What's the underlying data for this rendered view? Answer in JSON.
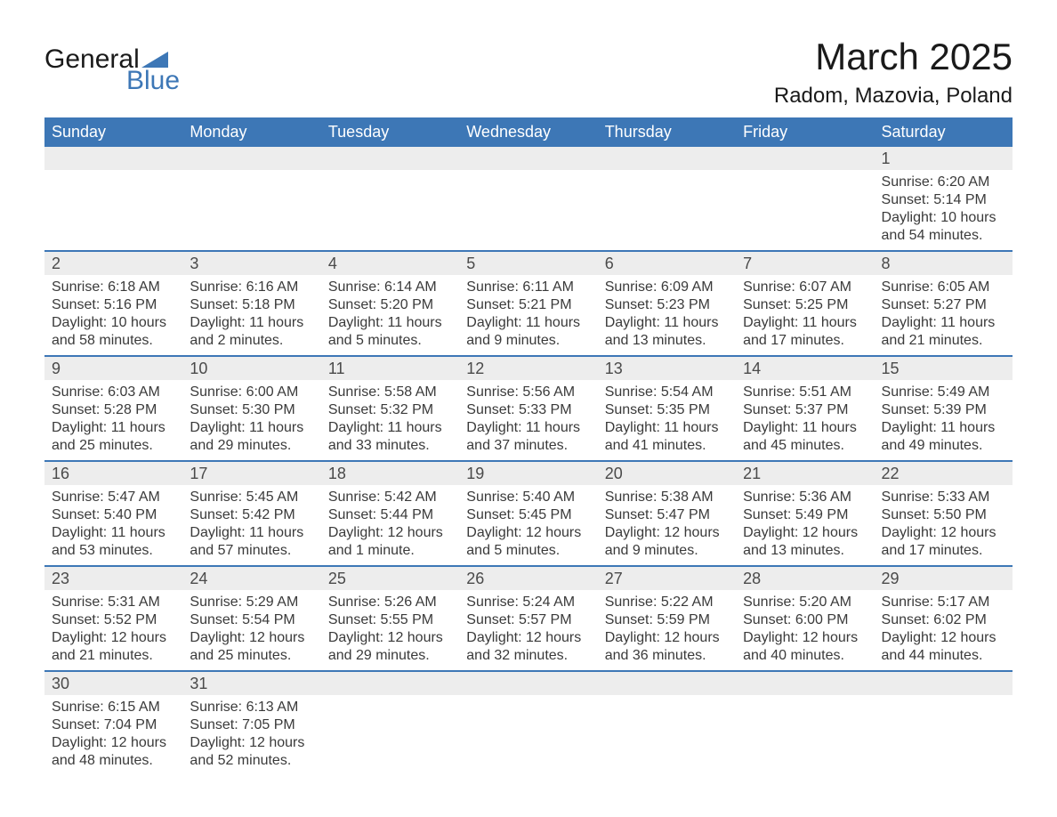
{
  "brand": {
    "word1": "General",
    "word2": "Blue"
  },
  "title": "March 2025",
  "location": "Radom, Mazovia, Poland",
  "colors": {
    "header_bg": "#3d77b6",
    "header_text": "#ffffff",
    "daynum_bg": "#ededed",
    "row_border": "#3d77b6",
    "body_text": "#3a3a3a",
    "logo_blue": "#3d77b6"
  },
  "weekdays": [
    "Sunday",
    "Monday",
    "Tuesday",
    "Wednesday",
    "Thursday",
    "Friday",
    "Saturday"
  ],
  "weeks": [
    [
      null,
      null,
      null,
      null,
      null,
      null,
      {
        "n": "1",
        "sr": "Sunrise: 6:20 AM",
        "ss": "Sunset: 5:14 PM",
        "d1": "Daylight: 10 hours",
        "d2": "and 54 minutes."
      }
    ],
    [
      {
        "n": "2",
        "sr": "Sunrise: 6:18 AM",
        "ss": "Sunset: 5:16 PM",
        "d1": "Daylight: 10 hours",
        "d2": "and 58 minutes."
      },
      {
        "n": "3",
        "sr": "Sunrise: 6:16 AM",
        "ss": "Sunset: 5:18 PM",
        "d1": "Daylight: 11 hours",
        "d2": "and 2 minutes."
      },
      {
        "n": "4",
        "sr": "Sunrise: 6:14 AM",
        "ss": "Sunset: 5:20 PM",
        "d1": "Daylight: 11 hours",
        "d2": "and 5 minutes."
      },
      {
        "n": "5",
        "sr": "Sunrise: 6:11 AM",
        "ss": "Sunset: 5:21 PM",
        "d1": "Daylight: 11 hours",
        "d2": "and 9 minutes."
      },
      {
        "n": "6",
        "sr": "Sunrise: 6:09 AM",
        "ss": "Sunset: 5:23 PM",
        "d1": "Daylight: 11 hours",
        "d2": "and 13 minutes."
      },
      {
        "n": "7",
        "sr": "Sunrise: 6:07 AM",
        "ss": "Sunset: 5:25 PM",
        "d1": "Daylight: 11 hours",
        "d2": "and 17 minutes."
      },
      {
        "n": "8",
        "sr": "Sunrise: 6:05 AM",
        "ss": "Sunset: 5:27 PM",
        "d1": "Daylight: 11 hours",
        "d2": "and 21 minutes."
      }
    ],
    [
      {
        "n": "9",
        "sr": "Sunrise: 6:03 AM",
        "ss": "Sunset: 5:28 PM",
        "d1": "Daylight: 11 hours",
        "d2": "and 25 minutes."
      },
      {
        "n": "10",
        "sr": "Sunrise: 6:00 AM",
        "ss": "Sunset: 5:30 PM",
        "d1": "Daylight: 11 hours",
        "d2": "and 29 minutes."
      },
      {
        "n": "11",
        "sr": "Sunrise: 5:58 AM",
        "ss": "Sunset: 5:32 PM",
        "d1": "Daylight: 11 hours",
        "d2": "and 33 minutes."
      },
      {
        "n": "12",
        "sr": "Sunrise: 5:56 AM",
        "ss": "Sunset: 5:33 PM",
        "d1": "Daylight: 11 hours",
        "d2": "and 37 minutes."
      },
      {
        "n": "13",
        "sr": "Sunrise: 5:54 AM",
        "ss": "Sunset: 5:35 PM",
        "d1": "Daylight: 11 hours",
        "d2": "and 41 minutes."
      },
      {
        "n": "14",
        "sr": "Sunrise: 5:51 AM",
        "ss": "Sunset: 5:37 PM",
        "d1": "Daylight: 11 hours",
        "d2": "and 45 minutes."
      },
      {
        "n": "15",
        "sr": "Sunrise: 5:49 AM",
        "ss": "Sunset: 5:39 PM",
        "d1": "Daylight: 11 hours",
        "d2": "and 49 minutes."
      }
    ],
    [
      {
        "n": "16",
        "sr": "Sunrise: 5:47 AM",
        "ss": "Sunset: 5:40 PM",
        "d1": "Daylight: 11 hours",
        "d2": "and 53 minutes."
      },
      {
        "n": "17",
        "sr": "Sunrise: 5:45 AM",
        "ss": "Sunset: 5:42 PM",
        "d1": "Daylight: 11 hours",
        "d2": "and 57 minutes."
      },
      {
        "n": "18",
        "sr": "Sunrise: 5:42 AM",
        "ss": "Sunset: 5:44 PM",
        "d1": "Daylight: 12 hours",
        "d2": "and 1 minute."
      },
      {
        "n": "19",
        "sr": "Sunrise: 5:40 AM",
        "ss": "Sunset: 5:45 PM",
        "d1": "Daylight: 12 hours",
        "d2": "and 5 minutes."
      },
      {
        "n": "20",
        "sr": "Sunrise: 5:38 AM",
        "ss": "Sunset: 5:47 PM",
        "d1": "Daylight: 12 hours",
        "d2": "and 9 minutes."
      },
      {
        "n": "21",
        "sr": "Sunrise: 5:36 AM",
        "ss": "Sunset: 5:49 PM",
        "d1": "Daylight: 12 hours",
        "d2": "and 13 minutes."
      },
      {
        "n": "22",
        "sr": "Sunrise: 5:33 AM",
        "ss": "Sunset: 5:50 PM",
        "d1": "Daylight: 12 hours",
        "d2": "and 17 minutes."
      }
    ],
    [
      {
        "n": "23",
        "sr": "Sunrise: 5:31 AM",
        "ss": "Sunset: 5:52 PM",
        "d1": "Daylight: 12 hours",
        "d2": "and 21 minutes."
      },
      {
        "n": "24",
        "sr": "Sunrise: 5:29 AM",
        "ss": "Sunset: 5:54 PM",
        "d1": "Daylight: 12 hours",
        "d2": "and 25 minutes."
      },
      {
        "n": "25",
        "sr": "Sunrise: 5:26 AM",
        "ss": "Sunset: 5:55 PM",
        "d1": "Daylight: 12 hours",
        "d2": "and 29 minutes."
      },
      {
        "n": "26",
        "sr": "Sunrise: 5:24 AM",
        "ss": "Sunset: 5:57 PM",
        "d1": "Daylight: 12 hours",
        "d2": "and 32 minutes."
      },
      {
        "n": "27",
        "sr": "Sunrise: 5:22 AM",
        "ss": "Sunset: 5:59 PM",
        "d1": "Daylight: 12 hours",
        "d2": "and 36 minutes."
      },
      {
        "n": "28",
        "sr": "Sunrise: 5:20 AM",
        "ss": "Sunset: 6:00 PM",
        "d1": "Daylight: 12 hours",
        "d2": "and 40 minutes."
      },
      {
        "n": "29",
        "sr": "Sunrise: 5:17 AM",
        "ss": "Sunset: 6:02 PM",
        "d1": "Daylight: 12 hours",
        "d2": "and 44 minutes."
      }
    ],
    [
      {
        "n": "30",
        "sr": "Sunrise: 6:15 AM",
        "ss": "Sunset: 7:04 PM",
        "d1": "Daylight: 12 hours",
        "d2": "and 48 minutes."
      },
      {
        "n": "31",
        "sr": "Sunrise: 6:13 AM",
        "ss": "Sunset: 7:05 PM",
        "d1": "Daylight: 12 hours",
        "d2": "and 52 minutes."
      },
      null,
      null,
      null,
      null,
      null
    ]
  ]
}
